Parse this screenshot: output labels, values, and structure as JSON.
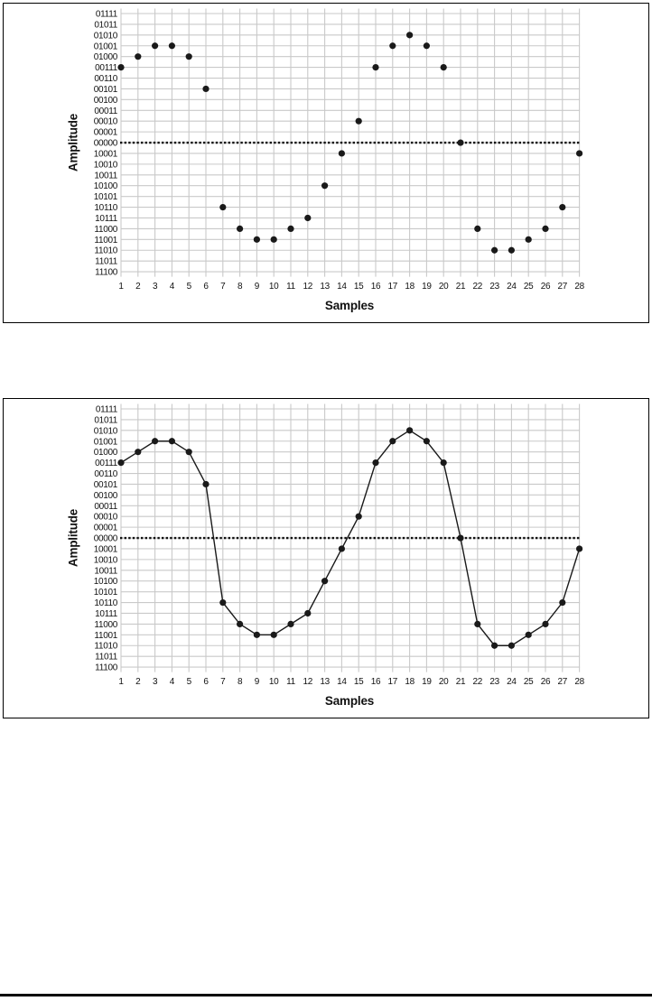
{
  "colors": {
    "point": "#1a1a1a",
    "wave_line": "#1a1a1a",
    "grid_line": "#c9c9c9",
    "zero_line": "#111111",
    "text": "#111111",
    "box_border": "#000000"
  },
  "page": {
    "bottom_rule": true
  },
  "chart_data": [
    {
      "id": "quantized-samples-scatter",
      "type": "scatter",
      "title": "",
      "xlabel": "Samples",
      "ylabel": "Amplitude",
      "grid": true,
      "legend": "none",
      "connect_points": false,
      "zero_line": {
        "style": "dotted",
        "at_label": "00000"
      },
      "y_tick_labels": [
        "01111",
        "01011",
        "01010",
        "01001",
        "01000",
        "00111",
        "00110",
        "00101",
        "00100",
        "00011",
        "00010",
        "00001",
        "00000",
        "10001",
        "10010",
        "10011",
        "10100",
        "10101",
        "10110",
        "10111",
        "11000",
        "11001",
        "11010",
        "11011",
        "11100"
      ],
      "x_tick_labels": [
        "1",
        "2",
        "3",
        "4",
        "5",
        "6",
        "7",
        "8",
        "9",
        "10",
        "11",
        "12",
        "13",
        "14",
        "15",
        "16",
        "17",
        "18",
        "19",
        "20",
        "21",
        "22",
        "23",
        "24",
        "25",
        "26",
        "27",
        "28"
      ],
      "points": [
        {
          "x": 1,
          "bits": "00111",
          "value": 7
        },
        {
          "x": 2,
          "bits": "01000",
          "value": 8
        },
        {
          "x": 3,
          "bits": "01001",
          "value": 9
        },
        {
          "x": 4,
          "bits": "01001",
          "value": 9
        },
        {
          "x": 5,
          "bits": "01000",
          "value": 8
        },
        {
          "x": 6,
          "bits": "00101",
          "value": 5
        },
        {
          "x": 7,
          "bits": "10110",
          "value": -6
        },
        {
          "x": 8,
          "bits": "11000",
          "value": -8
        },
        {
          "x": 9,
          "bits": "11001",
          "value": -9
        },
        {
          "x": 10,
          "bits": "11001",
          "value": -9
        },
        {
          "x": 11,
          "bits": "11000",
          "value": -8
        },
        {
          "x": 12,
          "bits": "10111",
          "value": -7
        },
        {
          "x": 13,
          "bits": "10100",
          "value": -4
        },
        {
          "x": 14,
          "bits": "10001",
          "value": -1
        },
        {
          "x": 15,
          "bits": "00010",
          "value": 2
        },
        {
          "x": 16,
          "bits": "00111",
          "value": 7
        },
        {
          "x": 17,
          "bits": "01001",
          "value": 9
        },
        {
          "x": 18,
          "bits": "01010",
          "value": 10
        },
        {
          "x": 19,
          "bits": "01001",
          "value": 9
        },
        {
          "x": 20,
          "bits": "00111",
          "value": 7
        },
        {
          "x": 21,
          "bits": "00000",
          "value": 0
        },
        {
          "x": 22,
          "bits": "11000",
          "value": -8
        },
        {
          "x": 23,
          "bits": "11010",
          "value": -10
        },
        {
          "x": 24,
          "bits": "11010",
          "value": -10
        },
        {
          "x": 25,
          "bits": "11001",
          "value": -9
        },
        {
          "x": 26,
          "bits": "11000",
          "value": -8
        },
        {
          "x": 27,
          "bits": "10110",
          "value": -6
        },
        {
          "x": 28,
          "bits": "10001",
          "value": -1
        }
      ]
    },
    {
      "id": "reconstructed-waveform-line",
      "type": "line",
      "title": "",
      "xlabel": "Samples",
      "ylabel": "Amplitude",
      "grid": true,
      "legend": "none",
      "connect_points": true,
      "zero_line": {
        "style": "dotted",
        "at_label": "00000"
      },
      "y_tick_labels": [
        "01111",
        "01011",
        "01010",
        "01001",
        "01000",
        "00111",
        "00110",
        "00101",
        "00100",
        "00011",
        "00010",
        "00001",
        "00000",
        "10001",
        "10010",
        "10011",
        "10100",
        "10101",
        "10110",
        "10111",
        "11000",
        "11001",
        "11010",
        "11011",
        "11100"
      ],
      "x_tick_labels": [
        "1",
        "2",
        "3",
        "4",
        "5",
        "6",
        "7",
        "8",
        "9",
        "10",
        "11",
        "12",
        "13",
        "14",
        "15",
        "16",
        "17",
        "18",
        "19",
        "20",
        "21",
        "22",
        "23",
        "24",
        "25",
        "26",
        "27",
        "28"
      ],
      "points": [
        {
          "x": 1,
          "bits": "00111",
          "value": 7
        },
        {
          "x": 2,
          "bits": "01000",
          "value": 8
        },
        {
          "x": 3,
          "bits": "01001",
          "value": 9
        },
        {
          "x": 4,
          "bits": "01001",
          "value": 9
        },
        {
          "x": 5,
          "bits": "01000",
          "value": 8
        },
        {
          "x": 6,
          "bits": "00101",
          "value": 5
        },
        {
          "x": 7,
          "bits": "10110",
          "value": -6
        },
        {
          "x": 8,
          "bits": "11000",
          "value": -8
        },
        {
          "x": 9,
          "bits": "11001",
          "value": -9
        },
        {
          "x": 10,
          "bits": "11001",
          "value": -9
        },
        {
          "x": 11,
          "bits": "11000",
          "value": -8
        },
        {
          "x": 12,
          "bits": "10111",
          "value": -7
        },
        {
          "x": 13,
          "bits": "10100",
          "value": -4
        },
        {
          "x": 14,
          "bits": "10001",
          "value": -1
        },
        {
          "x": 15,
          "bits": "00010",
          "value": 2
        },
        {
          "x": 16,
          "bits": "00111",
          "value": 7
        },
        {
          "x": 17,
          "bits": "01001",
          "value": 9
        },
        {
          "x": 18,
          "bits": "01010",
          "value": 10
        },
        {
          "x": 19,
          "bits": "01001",
          "value": 9
        },
        {
          "x": 20,
          "bits": "00111",
          "value": 7
        },
        {
          "x": 21,
          "bits": "00000",
          "value": 0
        },
        {
          "x": 22,
          "bits": "11000",
          "value": -8
        },
        {
          "x": 23,
          "bits": "11010",
          "value": -10
        },
        {
          "x": 24,
          "bits": "11010",
          "value": -10
        },
        {
          "x": 25,
          "bits": "11001",
          "value": -9
        },
        {
          "x": 26,
          "bits": "11000",
          "value": -8
        },
        {
          "x": 27,
          "bits": "10110",
          "value": -6
        },
        {
          "x": 28,
          "bits": "10001",
          "value": -1
        }
      ]
    }
  ]
}
